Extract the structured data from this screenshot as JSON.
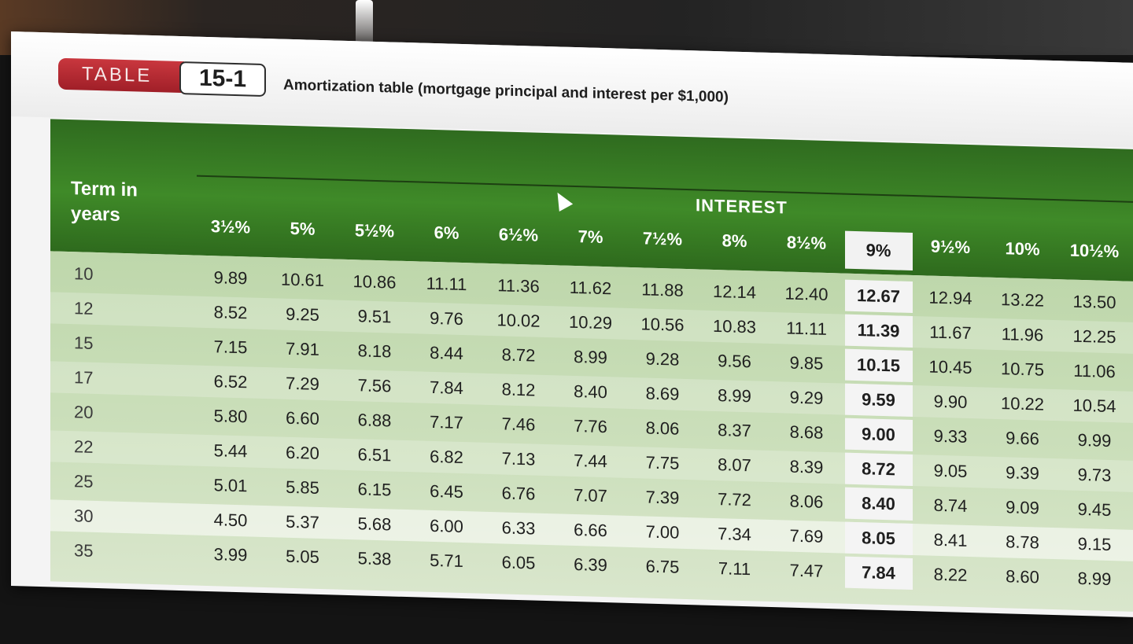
{
  "caption": {
    "label": "TABLE",
    "number": "15-1",
    "title": "Amortization table (mortgage principal and interest per $1,000)"
  },
  "header": {
    "term_label": "Term in years",
    "interest_label": "INTEREST"
  },
  "rates": [
    "3½%",
    "5%",
    "5½%",
    "6%",
    "6½%",
    "7%",
    "7½%",
    "8%",
    "8½%",
    "9%",
    "9½%",
    "10%",
    "10½%"
  ],
  "highlighted_rate_index": 9,
  "rows": [
    {
      "term": "10",
      "values": [
        "9.89",
        "10.61",
        "10.86",
        "11.11",
        "11.36",
        "11.62",
        "11.88",
        "12.14",
        "12.40",
        "12.67",
        "12.94",
        "13.22",
        "13.50"
      ]
    },
    {
      "term": "12",
      "values": [
        "8.52",
        "9.25",
        "9.51",
        "9.76",
        "10.02",
        "10.29",
        "10.56",
        "10.83",
        "11.11",
        "11.39",
        "11.67",
        "11.96",
        "12.25"
      ]
    },
    {
      "term": "15",
      "values": [
        "7.15",
        "7.91",
        "8.18",
        "8.44",
        "8.72",
        "8.99",
        "9.28",
        "9.56",
        "9.85",
        "10.15",
        "10.45",
        "10.75",
        "11.06"
      ]
    },
    {
      "term": "17",
      "values": [
        "6.52",
        "7.29",
        "7.56",
        "7.84",
        "8.12",
        "8.40",
        "8.69",
        "8.99",
        "9.29",
        "9.59",
        "9.90",
        "10.22",
        "10.54"
      ]
    },
    {
      "term": "20",
      "values": [
        "5.80",
        "6.60",
        "6.88",
        "7.17",
        "7.46",
        "7.76",
        "8.06",
        "8.37",
        "8.68",
        "9.00",
        "9.33",
        "9.66",
        "9.99"
      ]
    },
    {
      "term": "22",
      "values": [
        "5.44",
        "6.20",
        "6.51",
        "6.82",
        "7.13",
        "7.44",
        "7.75",
        "8.07",
        "8.39",
        "8.72",
        "9.05",
        "9.39",
        "9.73"
      ]
    },
    {
      "term": "25",
      "values": [
        "5.01",
        "5.85",
        "6.15",
        "6.45",
        "6.76",
        "7.07",
        "7.39",
        "7.72",
        "8.06",
        "8.40",
        "8.74",
        "9.09",
        "9.45"
      ]
    },
    {
      "term": "30",
      "values": [
        "4.50",
        "5.37",
        "5.68",
        "6.00",
        "6.33",
        "6.66",
        "7.00",
        "7.34",
        "7.69",
        "8.05",
        "8.41",
        "8.78",
        "9.15"
      ]
    },
    {
      "term": "35",
      "values": [
        "3.99",
        "5.05",
        "5.38",
        "5.71",
        "6.05",
        "6.39",
        "6.75",
        "7.11",
        "7.47",
        "7.84",
        "8.22",
        "8.60",
        "8.99"
      ]
    }
  ],
  "focused_row_index": 7,
  "colors": {
    "header_green": "#3f8a28",
    "label_red": "#b0262e",
    "highlight_column": "#f4f4f4"
  }
}
